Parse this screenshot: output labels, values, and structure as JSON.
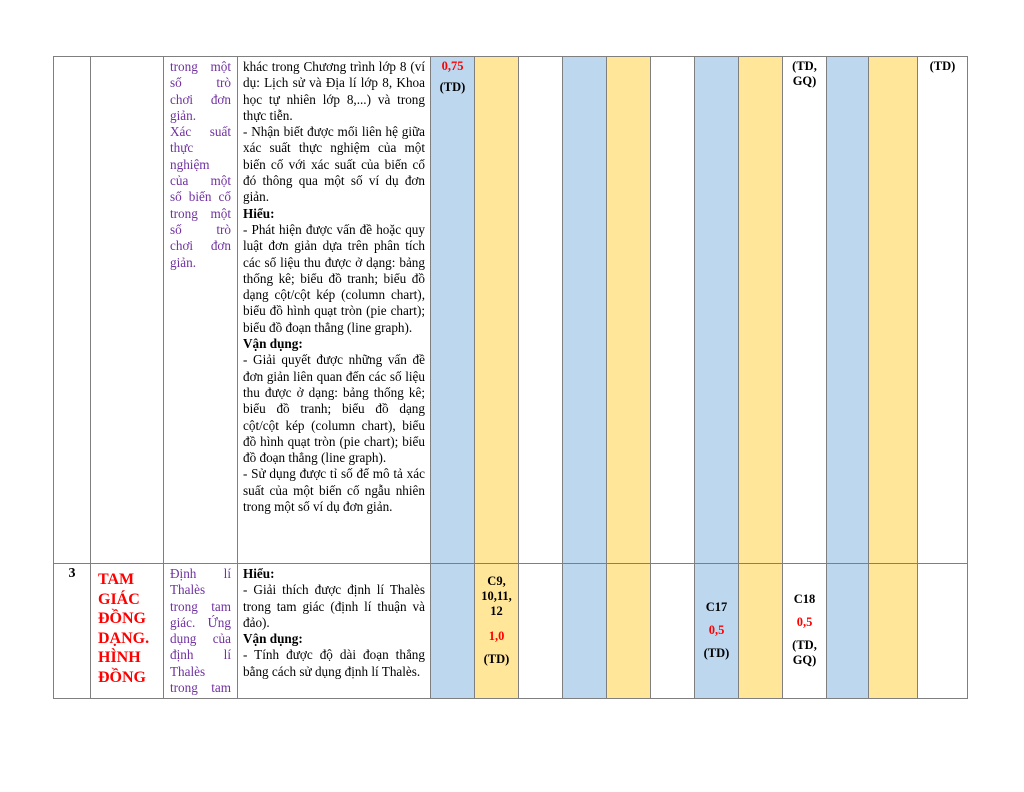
{
  "row1": {
    "stt": "",
    "topic": "",
    "content_lines": [
      "trong một",
      "số trò",
      "chơi đơn",
      "giản.",
      "Xác suất",
      "thực",
      "nghiệm",
      "của một",
      "số biến cố",
      "trong một",
      "số trò",
      "chơi đơn",
      "giản."
    ],
    "desc_lines": [
      {
        "t": "khác trong Chương trình lớp 8 (ví dụ: Lịch sử và Địa lí lớp 8, Khoa học tự nhiên lớp 8,...) và trong thực tiễn."
      },
      {
        "t": "- Nhận biết được mối liên hệ giữa xác suất thực nghiệm của một biến cố với xác suất của biến cố đó thông qua một số ví dụ đơn giản."
      },
      {
        "t": "Hiểu:",
        "b": true
      },
      {
        "t": "- Phát hiện được vấn đề hoặc quy luật đơn giản dựa trên phân tích các số liệu thu được ở dạng: bảng thống kê; biểu đồ tranh; biểu đồ dạng cột/cột kép (column chart), biểu đồ hình quạt tròn (pie chart); biểu đồ đoạn thẳng (line graph)."
      },
      {
        "t": "Vận dụng:",
        "b": true
      },
      {
        "t": "- Giải quyết được những vấn đề đơn giản liên quan đến các số liệu thu được ở dạng: bảng thống kê; biểu đồ tranh; biểu đồ dạng cột/cột kép (column chart), biểu đồ hình quạt tròn (pie chart); biểu đồ đoạn thẳng (line graph)."
      },
      {
        "t": "- Sử dụng được tỉ số để mô tả xác suất của một biến cố ngẫu nhiên trong một số ví dụ đơn giản."
      }
    ],
    "cells": {
      "c1_score": "0,75",
      "c1_note": "(TD)",
      "c9_note": "(TD, GQ)",
      "c12_note": "(TD)"
    }
  },
  "row2": {
    "stt": "3",
    "topic": "TAM GIÁC ĐỒNG DẠNG. HÌNH ĐỒNG",
    "content_lines": [
      "Định lí",
      "Thalès",
      "trong tam",
      "giác. Ứng",
      "dụng của",
      "định lí",
      "Thalès",
      "trong tam"
    ],
    "desc_lines": [
      {
        "t": "Hiểu:",
        "b": true
      },
      {
        "t": "- Giải thích được định lí Thalès trong tam giác (định lí thuận và đảo)."
      },
      {
        "t": "Vận dụng:",
        "b": true
      },
      {
        "t": "- Tính được độ dài đoạn thẳng bằng cách sử dụng định lí Thalès."
      }
    ],
    "cells": {
      "c2_q": "C9, 10,11, 12",
      "c2_score": "1,0",
      "c2_note": "(TD)",
      "c7_q": "C17",
      "c7_score": "0,5",
      "c7_note": "(TD)",
      "c9_q": "C18",
      "c9_score": "0,5",
      "c9_note": "(TD, GQ)"
    }
  }
}
